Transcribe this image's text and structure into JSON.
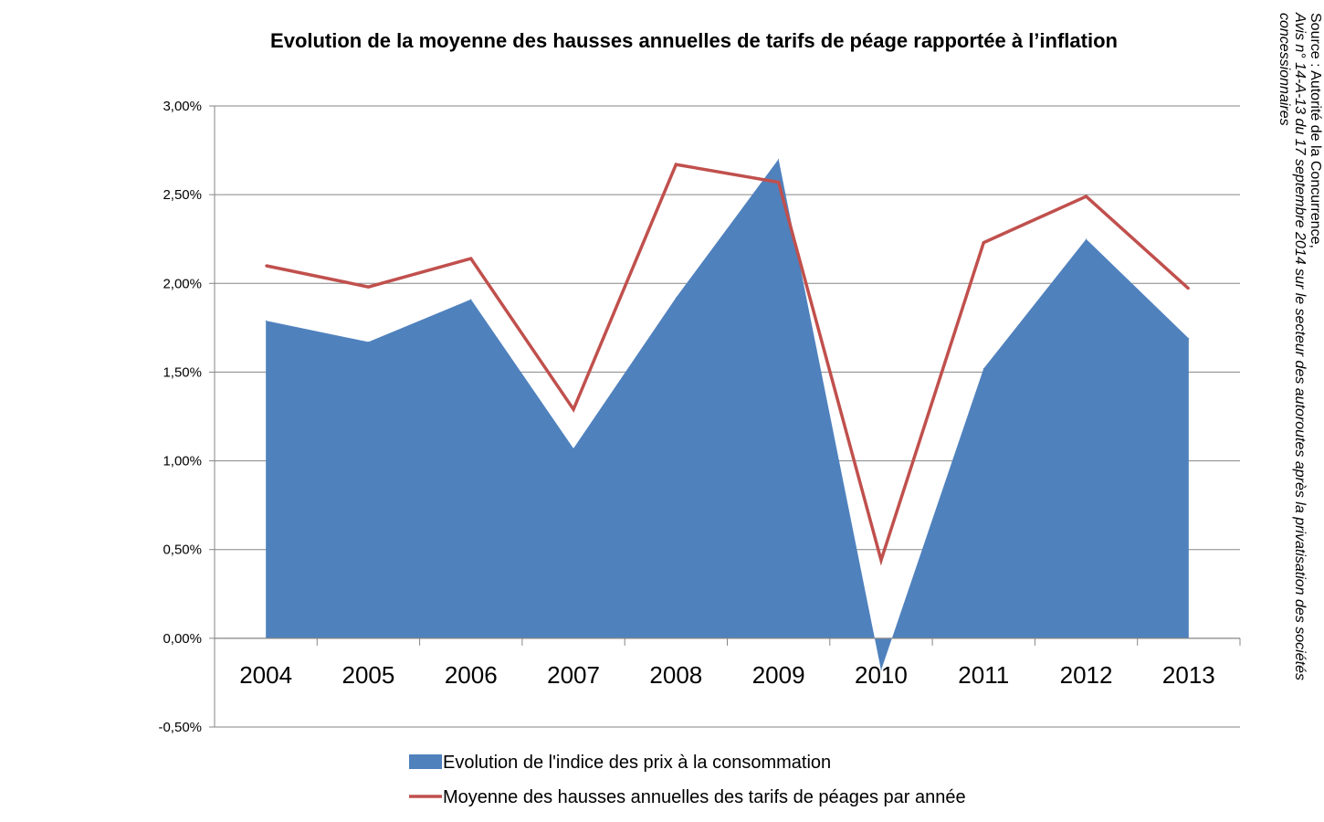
{
  "chart_data": {
    "type": "area+line",
    "title": "Evolution de la moyenne des hausses annuelles de tarifs de péage rapportée à l’inflation",
    "categories": [
      "2004",
      "2005",
      "2006",
      "2007",
      "2008",
      "2009",
      "2010",
      "2011",
      "2012",
      "2013"
    ],
    "y_ticks": [
      "3,00%",
      "2,50%",
      "2,00%",
      "1,50%",
      "1,00%",
      "0,50%",
      "0,00%",
      "-0,50%"
    ],
    "ylim": [
      -0.5,
      3.0
    ],
    "y_unit": "%",
    "grid": true,
    "legend_position": "bottom",
    "series": [
      {
        "name": "Evolution de l'indice des prix à la consommation",
        "type": "area",
        "color": "#4F81BD",
        "values": [
          1.79,
          1.67,
          1.91,
          1.07,
          1.92,
          2.7,
          -0.18,
          1.52,
          2.25,
          1.69
        ]
      },
      {
        "name": "Moyenne des hausses annuelles des tarifs de péages par année",
        "type": "line",
        "color": "#C0504D",
        "values": [
          2.1,
          1.98,
          2.14,
          1.29,
          2.67,
          2.57,
          0.44,
          2.23,
          2.49,
          1.97
        ]
      }
    ]
  },
  "source_note": {
    "line1": "Source : Autorité de la Concurrence,",
    "line2": "Avis n° 14-A-13 du 17 septembre 2014 sur le secteur des autoroutes après la privatisation des sociétés concessionnaires"
  }
}
